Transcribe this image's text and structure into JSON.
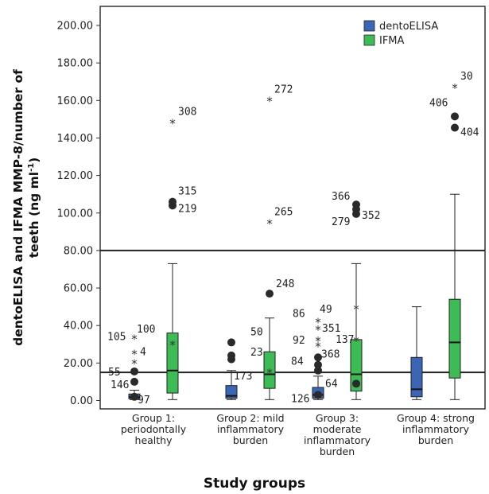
{
  "chart_data": {
    "type": "box",
    "title": "",
    "xlabel": "Study groups",
    "ylabel_line1": "dentoELISA and IFMA MMP-8/number of",
    "ylabel_line2": "teeth (ng ml",
    "ylabel_sup": "-1",
    "ylabel_end": ")",
    "ylim": [
      0,
      210
    ],
    "y_ticks": [
      {
        "v": 0,
        "label": "0.00"
      },
      {
        "v": 20,
        "label": "20.00"
      },
      {
        "v": 40,
        "label": "40.00"
      },
      {
        "v": 60,
        "label": "60.00"
      },
      {
        "v": 80,
        "label": "80.00"
      },
      {
        "v": 100,
        "label": "100.00"
      },
      {
        "v": 120,
        "label": "120.00"
      },
      {
        "v": 140,
        "label": "140.00"
      },
      {
        "v": 160,
        "label": "160.00"
      },
      {
        "v": 180,
        "label": "180.00"
      },
      {
        "v": 200,
        "label": "200.00"
      }
    ],
    "reference_lines": [
      80,
      15
    ],
    "legend_position": "top-right",
    "categories": [
      [
        "Group 1:",
        "periodontally",
        "healthy"
      ],
      [
        "Group 2: mild",
        "inflammatory",
        "burden"
      ],
      [
        "Group 3:",
        "moderate",
        "inflammatory",
        "burden"
      ],
      [
        "Group 4: strong",
        "inflammatory",
        "burden"
      ]
    ],
    "series": [
      {
        "name": "dentoELISA",
        "color": "#3a66b5",
        "boxes": [
          {
            "min": 0.5,
            "q1": 1,
            "median": 1.8,
            "q3": 3.5,
            "max": 5.5
          },
          {
            "min": 0.5,
            "q1": 1.2,
            "median": 2.5,
            "q3": 8,
            "max": 16
          },
          {
            "min": 0.5,
            "q1": 1.2,
            "median": 3,
            "q3": 7,
            "max": 13
          },
          {
            "min": 0.5,
            "q1": 2,
            "median": 6,
            "q3": 23,
            "max": 50
          }
        ],
        "outliers": [
          {
            "group": 0,
            "kind": "circle",
            "y": 15.5,
            "label": "55"
          },
          {
            "group": 0,
            "kind": "circle",
            "y": 10,
            "label": "146"
          },
          {
            "group": 0,
            "kind": "circle",
            "y": 2,
            "label": "97"
          },
          {
            "group": 0,
            "kind": "star",
            "y": 33,
            "label": "105"
          },
          {
            "group": 0,
            "kind": "star",
            "y": 25,
            "label": "4"
          },
          {
            "group": 0,
            "kind": "star",
            "y": 20,
            "label": ""
          },
          {
            "group": 1,
            "kind": "circle",
            "y": 31,
            "label": "50"
          },
          {
            "group": 1,
            "kind": "circle",
            "y": 24,
            "label": "23"
          },
          {
            "group": 1,
            "kind": "circle",
            "y": 22,
            "label": ""
          },
          {
            "group": 2,
            "kind": "circle",
            "y": 23,
            "label": "368"
          },
          {
            "group": 2,
            "kind": "circle",
            "y": 19,
            "label": "84"
          },
          {
            "group": 2,
            "kind": "circle",
            "y": 16,
            "label": ""
          },
          {
            "group": 2,
            "kind": "star",
            "y": 42,
            "label": "86"
          },
          {
            "group": 2,
            "kind": "star",
            "y": 38,
            "label": "351"
          },
          {
            "group": 2,
            "kind": "star",
            "y": 32,
            "label": "92"
          },
          {
            "group": 2,
            "kind": "star",
            "y": 29,
            "label": ""
          },
          {
            "group": 2,
            "kind": "circle",
            "y": 3,
            "label": "126"
          }
        ]
      },
      {
        "name": "IFMA",
        "color": "#3dbb54",
        "boxes": [
          {
            "min": 0.5,
            "q1": 4,
            "median": 16,
            "q3": 36,
            "max": 73
          },
          {
            "min": 0.5,
            "q1": 6.5,
            "median": 14,
            "q3": 26,
            "max": 44
          },
          {
            "min": 0.5,
            "q1": 5,
            "median": 14,
            "q3": 32.5,
            "max": 73
          },
          {
            "min": 0.5,
            "q1": 12,
            "median": 31,
            "q3": 54,
            "max": 110
          }
        ],
        "outliers": [
          {
            "group": 0,
            "kind": "star",
            "y": 148,
            "label": "308"
          },
          {
            "group": 0,
            "kind": "circle",
            "y": 106,
            "label": "315"
          },
          {
            "group": 0,
            "kind": "circle",
            "y": 104,
            "label": "219"
          },
          {
            "group": 0,
            "kind": "star",
            "y": 30,
            "label": "100"
          },
          {
            "group": 1,
            "kind": "star",
            "y": 160,
            "label": "272"
          },
          {
            "group": 1,
            "kind": "star",
            "y": 94.5,
            "label": "265"
          },
          {
            "group": 1,
            "kind": "circle",
            "y": 57,
            "label": "248"
          },
          {
            "group": 1,
            "kind": "star",
            "y": 15,
            "label": "173"
          },
          {
            "group": 2,
            "kind": "circle",
            "y": 104.5,
            "label": "366"
          },
          {
            "group": 2,
            "kind": "circle",
            "y": 102,
            "label": ""
          },
          {
            "group": 2,
            "kind": "circle",
            "y": 99.5,
            "label": "352"
          },
          {
            "group": 2,
            "kind": "label",
            "y": 96,
            "label": "279"
          },
          {
            "group": 2,
            "kind": "star",
            "y": 49,
            "label": "49"
          },
          {
            "group": 2,
            "kind": "star",
            "y": 32,
            "label": "137"
          },
          {
            "group": 2,
            "kind": "circle",
            "y": 9,
            "label": "64"
          },
          {
            "group": 3,
            "kind": "star",
            "y": 167,
            "label": "30"
          },
          {
            "group": 3,
            "kind": "circle",
            "y": 151.5,
            "label": "406"
          },
          {
            "group": 3,
            "kind": "circle",
            "y": 145.5,
            "label": "404"
          }
        ]
      }
    ]
  }
}
